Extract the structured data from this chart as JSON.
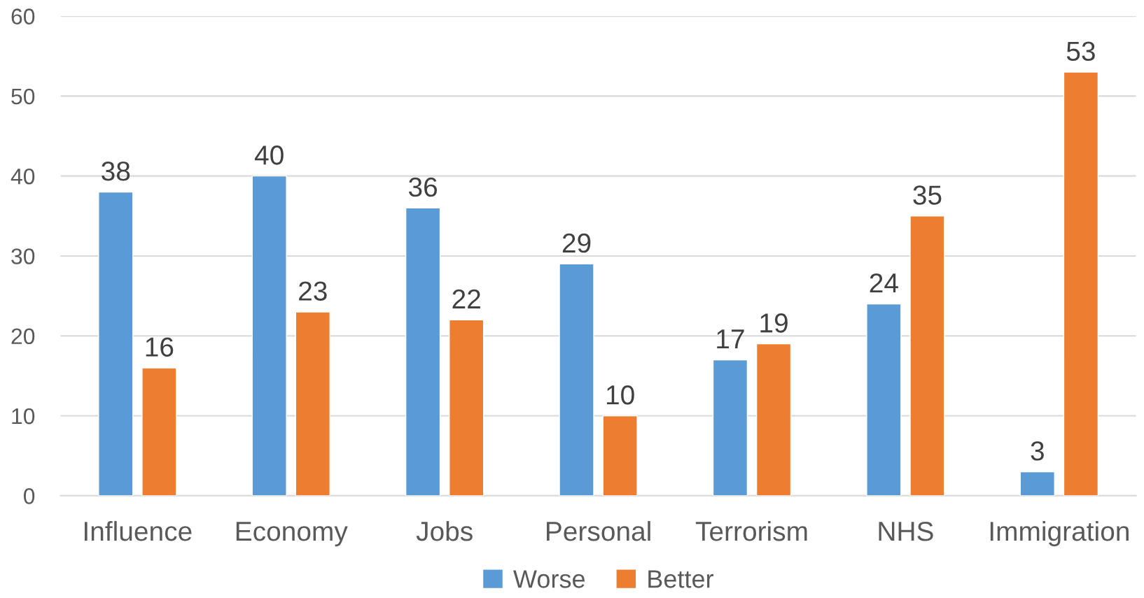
{
  "chart_data": {
    "type": "bar",
    "categories": [
      "Influence",
      "Economy",
      "Jobs",
      "Personal",
      "Terrorism",
      "NHS",
      "Immigration"
    ],
    "series": [
      {
        "name": "Worse",
        "color": "#5b9bd5",
        "values": [
          38,
          40,
          36,
          29,
          17,
          24,
          3
        ]
      },
      {
        "name": "Better",
        "color": "#ed7d31",
        "values": [
          16,
          23,
          22,
          10,
          19,
          35,
          53
        ]
      }
    ],
    "ylim": [
      0,
      60
    ],
    "yticks": [
      0,
      10,
      20,
      30,
      40,
      50,
      60
    ],
    "grid": "y",
    "legend": "bottom",
    "data_labels": true
  }
}
